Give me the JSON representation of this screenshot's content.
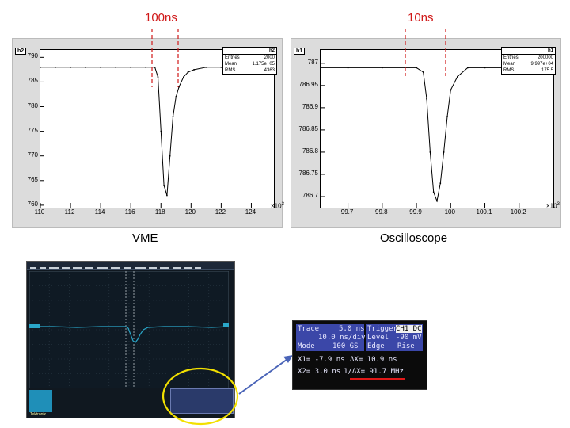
{
  "labels": {
    "vme_resolution": "100ns",
    "osc_resolution": "10ns",
    "vme_caption": "VME",
    "osc_caption": "Oscilloscope"
  },
  "colors": {
    "marker": "#d01818",
    "trace": "#000000",
    "scope_trace": "#2aa7c9",
    "highlight": "#f2e000",
    "arrow": "#4a64b8"
  },
  "h2": {
    "tag": "h2",
    "stats": {
      "name": "h2",
      "entries_label": "Entries",
      "entries": "2000",
      "mean_label": "Mean",
      "mean": "1.175e+05",
      "rms_label": "RMS",
      "rms": "4363"
    },
    "x_ticks": [
      "110",
      "112",
      "114",
      "116",
      "118",
      "120",
      "122",
      "124"
    ],
    "y_ticks": [
      "790",
      "785",
      "780",
      "775",
      "770",
      "765",
      "760"
    ],
    "x_exponent": "×10",
    "x_exponent_power": "3",
    "chart_data": {
      "type": "line",
      "xlim": [
        110,
        125.5
      ],
      "ylim": [
        759.5,
        791.5
      ],
      "unit_scale": "x10^3",
      "x": [
        110.0,
        111.0,
        112.0,
        113.0,
        114.0,
        115.0,
        116.0,
        117.0,
        117.6,
        117.8,
        118.0,
        118.2,
        118.4,
        118.6,
        118.8,
        119.0,
        119.2,
        119.5,
        119.8,
        120.2,
        121.0,
        122.0,
        123.0,
        124.0,
        125.0
      ],
      "y": [
        788,
        788,
        788,
        788,
        788,
        788,
        788,
        788,
        788,
        786,
        775,
        764,
        762,
        770,
        778,
        782,
        784,
        786,
        787,
        787.5,
        788,
        788,
        788,
        788,
        788
      ]
    }
  },
  "h1": {
    "tag": "h1",
    "stats": {
      "name": "h1",
      "entries_label": "Entries",
      "entries": "200000",
      "mean_label": "Mean",
      "mean": "9.997e+04",
      "rms_label": "RMS",
      "rms": "175.5"
    },
    "x_ticks": [
      "99.7",
      "99.8",
      "99.9",
      "100",
      "100.1",
      "100.2"
    ],
    "y_ticks": [
      "787",
      "786.95",
      "786.9",
      "786.85",
      "786.8",
      "786.75",
      "786.7"
    ],
    "x_exponent": "×10",
    "x_exponent_power": "3",
    "chart_data": {
      "type": "line",
      "xlim": [
        99.62,
        100.3
      ],
      "ylim": [
        786.675,
        787.03
      ],
      "unit_scale": "x10^3",
      "x": [
        99.62,
        99.7,
        99.8,
        99.9,
        99.92,
        99.93,
        99.94,
        99.95,
        99.96,
        99.97,
        99.98,
        99.99,
        100.0,
        100.02,
        100.05,
        100.1,
        100.2,
        100.3
      ],
      "y": [
        786.99,
        786.99,
        786.99,
        786.99,
        786.98,
        786.92,
        786.8,
        786.71,
        786.69,
        786.73,
        786.8,
        786.88,
        786.94,
        786.97,
        786.99,
        786.99,
        786.99,
        786.99
      ]
    }
  },
  "scope": {
    "status_line": "Tektronix"
  },
  "zoom": {
    "row1": [
      "Trace",
      "5.0 ns",
      "Trigger",
      "CH1 DC"
    ],
    "row2": [
      "",
      "10.0 ns/div",
      "Level",
      "-90 mV"
    ],
    "row3": [
      "Mode",
      "100 GS",
      "Edge",
      "Rise"
    ],
    "row4": [
      "X1= -7.9 ns",
      "ΔX= 10.9 ns"
    ],
    "row5": [
      "X2= 3.0 ns",
      "1/ΔX= 91.7 MHz"
    ]
  }
}
